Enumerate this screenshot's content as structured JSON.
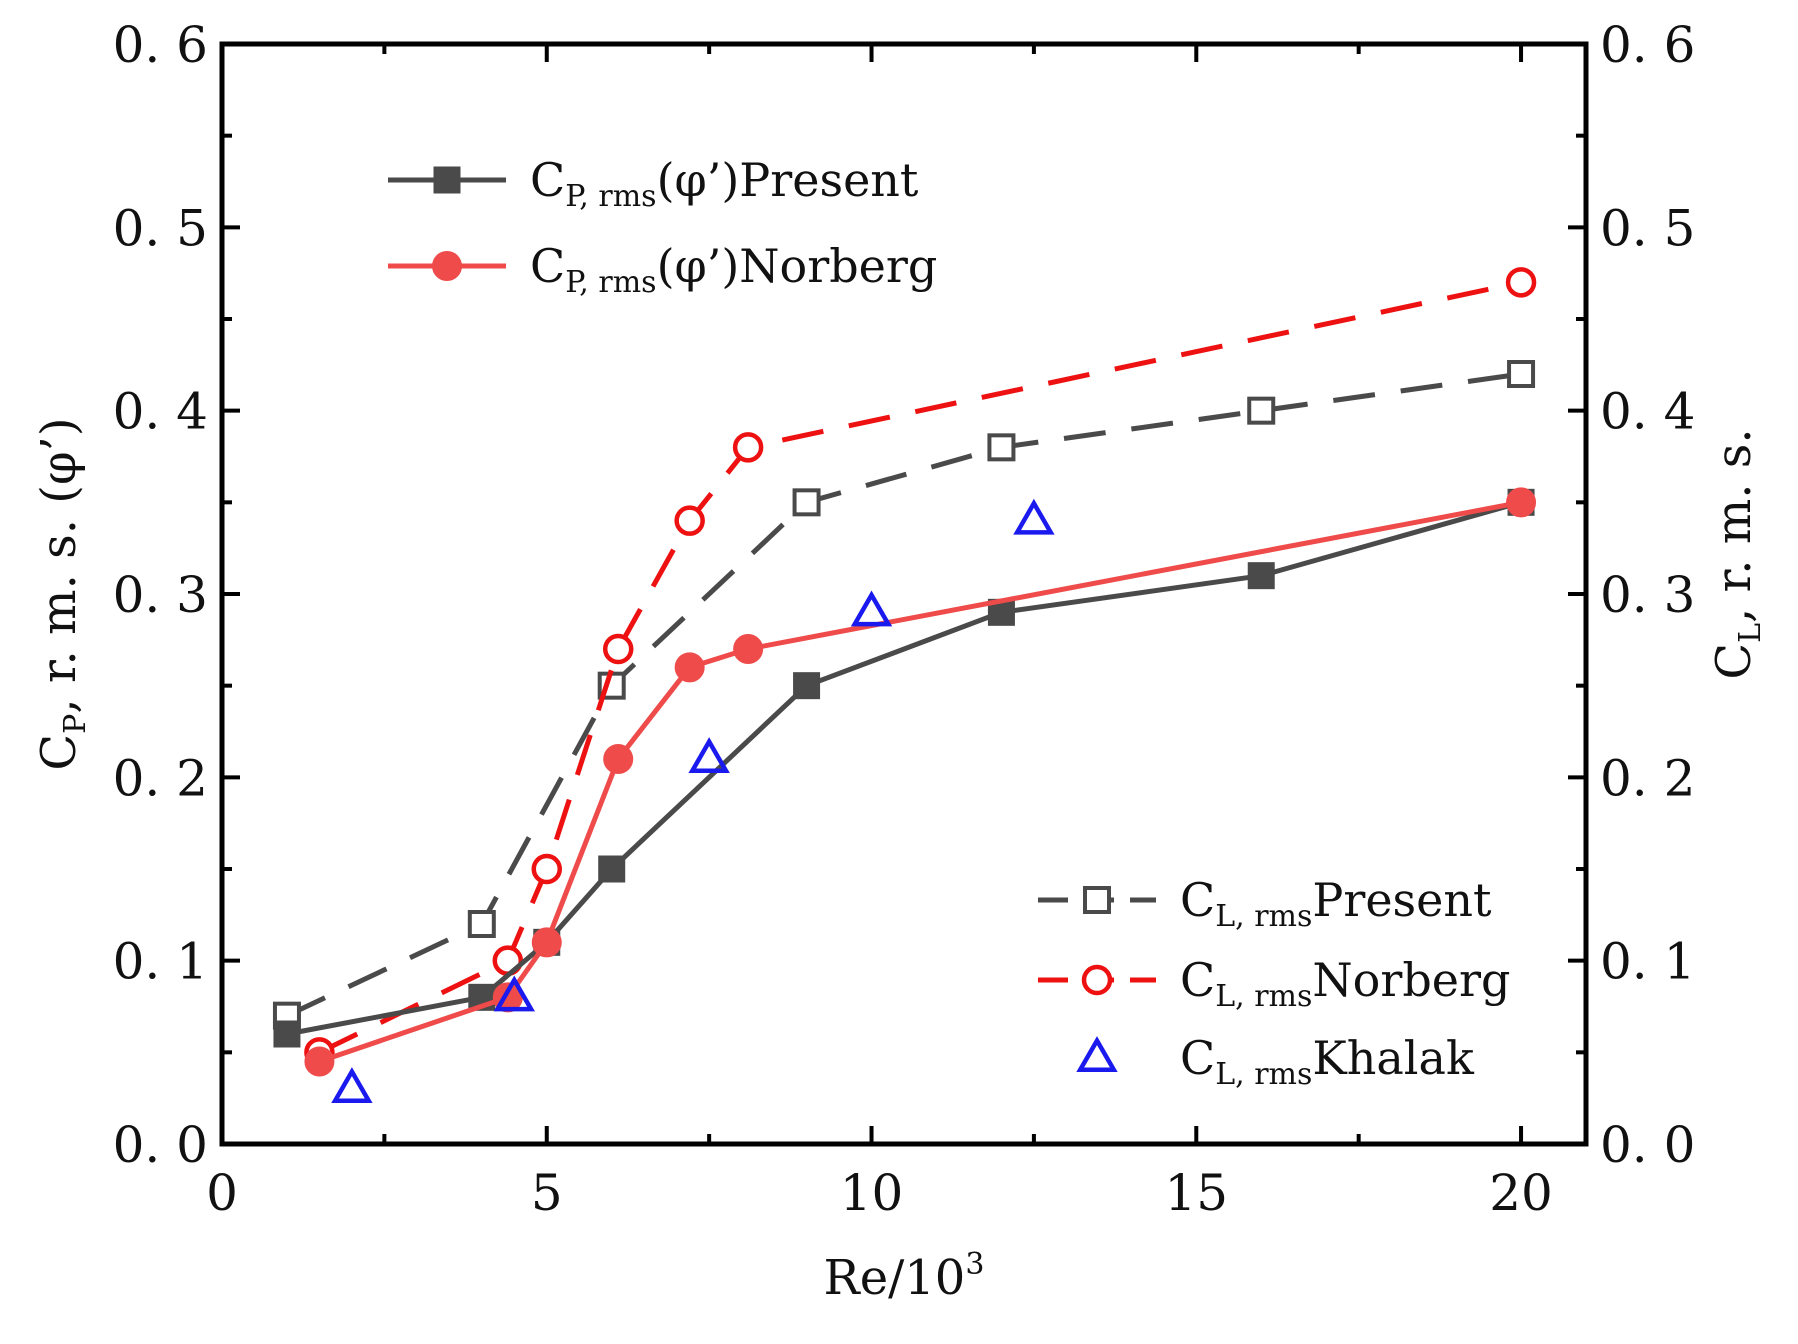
{
  "chart_data": {
    "type": "line",
    "xlabel": "Re/10",
    "xlabel_sup": "3",
    "ylabel_left": {
      "main": "C",
      "sub": "P",
      "rest": ", r. m. s. (φ’)"
    },
    "ylabel_right": {
      "main": "C",
      "sub": "L",
      "rest": ", r. m. s."
    },
    "xlim": [
      0,
      21
    ],
    "ylim": [
      0.0,
      0.6
    ],
    "xticks": [
      0,
      5,
      10,
      15,
      20
    ],
    "xtick_labels": [
      "0",
      "5",
      "10",
      "15",
      "20"
    ],
    "yticks": [
      0.0,
      0.1,
      0.2,
      0.3,
      0.4,
      0.5,
      0.6
    ],
    "ytick_labels": [
      "0. 0",
      "0. 1",
      "0. 2",
      "0. 3",
      "0. 4",
      "0. 5",
      "0. 6"
    ],
    "series": [
      {
        "id": "cp-present",
        "legend_main": "C",
        "legend_sub": "P, rms",
        "legend_rest": "(φ’)Present",
        "color": "#4a4a4a",
        "marker": "square-filled",
        "line": "solid",
        "axis": "left",
        "x": [
          1.0,
          4.0,
          5.0,
          6.0,
          9.0,
          12.0,
          16.0,
          20.0
        ],
        "y": [
          0.06,
          0.08,
          0.11,
          0.15,
          0.25,
          0.29,
          0.31,
          0.35
        ]
      },
      {
        "id": "cp-norberg",
        "legend_main": "C",
        "legend_sub": "P, rms",
        "legend_rest": "(φ’)Norberg",
        "color": "#ef4b4b",
        "marker": "circle-filled",
        "line": "solid",
        "axis": "left",
        "x": [
          1.5,
          4.4,
          5.0,
          6.1,
          7.2,
          8.1,
          20.0
        ],
        "y": [
          0.045,
          0.08,
          0.11,
          0.21,
          0.26,
          0.27,
          0.35
        ]
      },
      {
        "id": "cl-present",
        "legend_main": "C",
        "legend_sub": "L, rms",
        "legend_rest": "Present",
        "color": "#4a4a4a",
        "marker": "square-open",
        "line": "dashed",
        "axis": "right",
        "x": [
          1.0,
          4.0,
          6.0,
          9.0,
          12.0,
          16.0,
          20.0
        ],
        "y": [
          0.07,
          0.12,
          0.25,
          0.35,
          0.38,
          0.4,
          0.42
        ]
      },
      {
        "id": "cl-norberg",
        "legend_main": "C",
        "legend_sub": "L, rms",
        "legend_rest": "Norberg",
        "color": "#ee1111",
        "marker": "circle-open",
        "line": "dashed",
        "axis": "right",
        "x": [
          1.5,
          4.4,
          5.0,
          6.1,
          7.2,
          8.1,
          20.0
        ],
        "y": [
          0.05,
          0.1,
          0.15,
          0.27,
          0.34,
          0.38,
          0.47
        ]
      },
      {
        "id": "cl-khalak",
        "legend_main": "C",
        "legend_sub": "L, rms",
        "legend_rest": "Khalak",
        "color": "#1a1aee",
        "marker": "triangle-open",
        "line": "none",
        "axis": "right",
        "x": [
          2.0,
          4.5,
          7.5,
          10.0,
          12.5
        ],
        "y": [
          0.03,
          0.08,
          0.21,
          0.29,
          0.34
        ]
      }
    ],
    "legends": [
      {
        "position": "top-left",
        "series": [
          "cp-present",
          "cp-norberg"
        ]
      },
      {
        "position": "bottom-right",
        "series": [
          "cl-present",
          "cl-norberg",
          "cl-khalak"
        ]
      }
    ]
  }
}
